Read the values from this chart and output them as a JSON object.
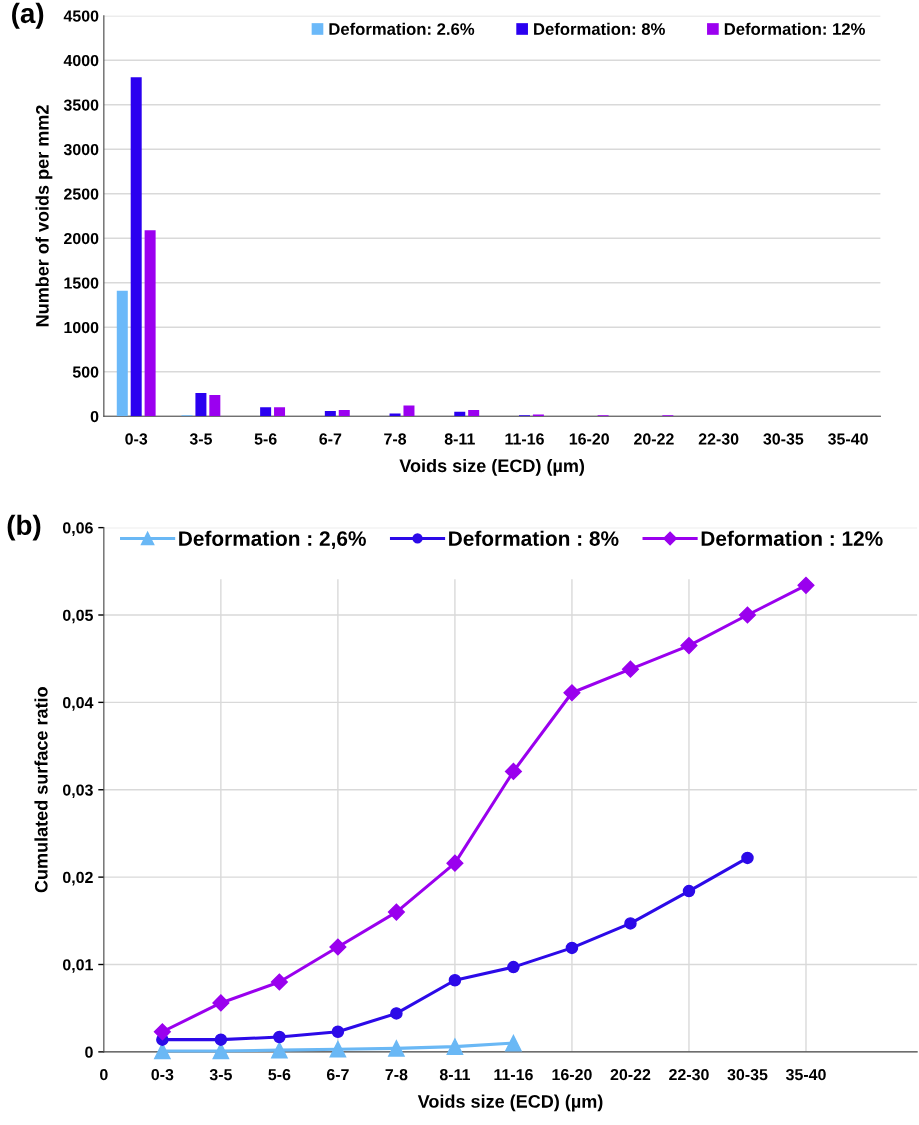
{
  "chart_data": [
    {
      "type": "bar",
      "title": "(a)",
      "xlabel": "Voids size (ECD) (µm)",
      "ylabel": "Number of voids per mm2",
      "categories": [
        "0-3",
        "3-5",
        "5-6",
        "6-7",
        "7-8",
        "8-11",
        "11-16",
        "16-20",
        "20-22",
        "22-30",
        "30-35",
        "35-40"
      ],
      "series": [
        {
          "name": "Deformation: 2.6%",
          "color": "#6bb9f9",
          "values": [
            1410,
            10,
            0,
            0,
            0,
            0,
            0,
            0,
            0,
            0,
            0,
            0
          ]
        },
        {
          "name": "Deformation: 8%",
          "color": "#2a00f0",
          "values": [
            3810,
            260,
            100,
            60,
            30,
            50,
            10,
            0,
            0,
            0,
            0,
            0
          ]
        },
        {
          "name": "Deformation: 12%",
          "color": "#9b00f0",
          "values": [
            2090,
            240,
            100,
            70,
            120,
            70,
            20,
            10,
            10,
            0,
            0,
            0
          ]
        }
      ],
      "ylim": [
        0,
        4500
      ],
      "yticks": [
        0,
        500,
        1000,
        1500,
        2000,
        2500,
        3000,
        3500,
        4000,
        4500
      ],
      "grid": "y",
      "legend": "top right"
    },
    {
      "type": "line",
      "title": "(b)",
      "xlabel": "Voids size (ECD) (µm)",
      "ylabel": "Cumulated surface ratio",
      "categories": [
        "0",
        "0-3",
        "3-5",
        "5-6",
        "6-7",
        "7-8",
        "8-11",
        "11-16",
        "16-20",
        "20-22",
        "22-30",
        "30-35",
        "35-40",
        null
      ],
      "series": [
        {
          "name": "Deformation : 2,6%",
          "color": "#6ab8f5",
          "marker": "triangle",
          "values": [
            null,
            0.0001,
            0.0001,
            0.0002,
            0.0003,
            0.0004,
            0.0006,
            0.001,
            null,
            null,
            null,
            null,
            null,
            null
          ]
        },
        {
          "name": "Deformation : 8%",
          "color": "#2c0ae8",
          "marker": "circle",
          "values": [
            null,
            0.0014,
            0.0014,
            0.0017,
            0.0023,
            0.0044,
            0.0082,
            0.0097,
            0.0119,
            0.0147,
            0.0184,
            0.0222,
            null,
            null
          ]
        },
        {
          "name": "Deformation : 12%",
          "color": "#9a00ee",
          "marker": "diamond",
          "values": [
            null,
            0.0023,
            0.0056,
            0.008,
            0.012,
            0.016,
            0.0216,
            0.0321,
            0.0411,
            0.0438,
            0.0465,
            0.05,
            0.0534,
            null
          ]
        }
      ],
      "ylim": [
        0,
        0.06
      ],
      "yticks": [
        0,
        {
          "value": 0.01,
          "label": "0,01"
        },
        {
          "value": 0.02,
          "label": "0,02"
        },
        {
          "value": 0.03,
          "label": "0,03"
        },
        {
          "value": 0.04,
          "label": "0,04"
        },
        {
          "value": 0.05,
          "label": "0,05"
        },
        {
          "value": 0.06,
          "label": "0,06"
        }
      ],
      "grid": true,
      "legend": "top",
      "line_style": "solid"
    }
  ]
}
